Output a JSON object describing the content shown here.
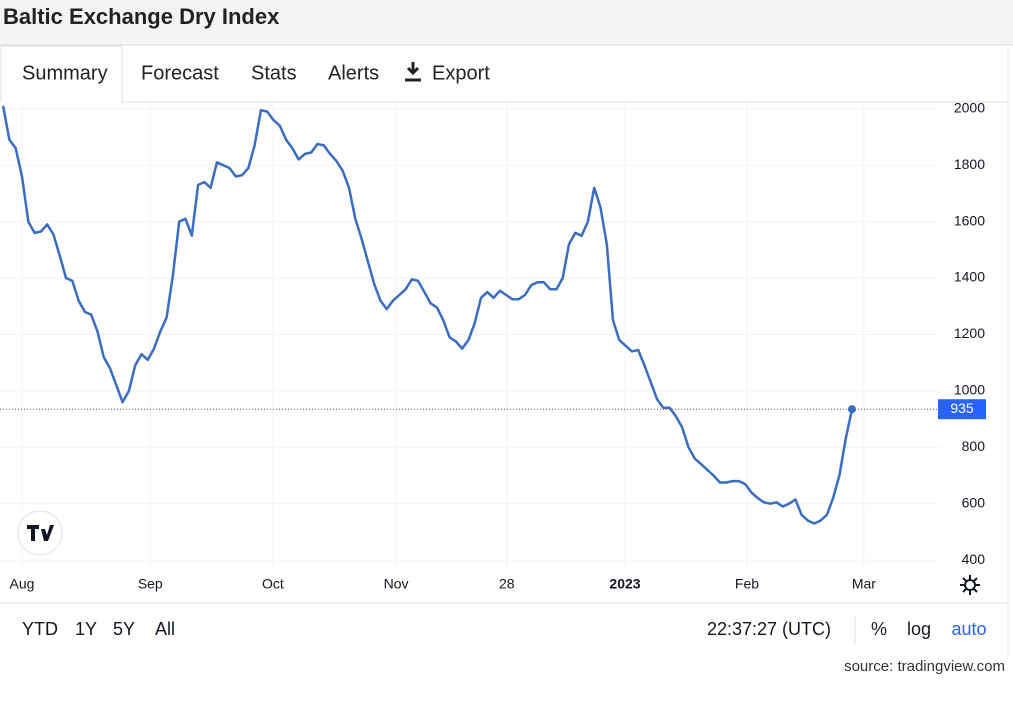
{
  "header": {
    "title": "Baltic Exchange Dry Index"
  },
  "tabs": [
    "Summary",
    "Forecast",
    "Stats",
    "Alerts",
    "Export"
  ],
  "chart_data": {
    "type": "line",
    "series": [
      {
        "color": "#3a6cc0",
        "values": [
          2010,
          1890,
          1860,
          1760,
          1600,
          1560,
          1565,
          1590,
          1555,
          1480,
          1400,
          1390,
          1320,
          1280,
          1270,
          1210,
          1120,
          1080,
          1020,
          960,
          1000,
          1090,
          1130,
          1110,
          1150,
          1210,
          1260,
          1410,
          1600,
          1610,
          1550,
          1730,
          1740,
          1720,
          1810,
          1800,
          1790,
          1760,
          1765,
          1790,
          1870,
          1995,
          1990,
          1960,
          1940,
          1890,
          1860,
          1820,
          1840,
          1845,
          1875,
          1870,
          1840,
          1815,
          1780,
          1720,
          1610,
          1540,
          1460,
          1380,
          1320,
          1290,
          1320,
          1340,
          1360,
          1395,
          1390,
          1350,
          1310,
          1295,
          1250,
          1190,
          1175,
          1150,
          1180,
          1240,
          1330,
          1350,
          1330,
          1355,
          1340,
          1325,
          1325,
          1340,
          1375,
          1385,
          1385,
          1360,
          1360,
          1400,
          1520,
          1560,
          1550,
          1600,
          1720,
          1650,
          1520,
          1250,
          1180,
          1160,
          1140,
          1145,
          1090,
          1030,
          970,
          940,
          940,
          910,
          870,
          800,
          760,
          740,
          720,
          700,
          675,
          675,
          680,
          680,
          670,
          640,
          620,
          605,
          600,
          605,
          590,
          600,
          615,
          560,
          540,
          530,
          540,
          560,
          620,
          700,
          830,
          935
        ]
      }
    ],
    "xlim": [
      -0.5,
      149.0
    ],
    "xticks": [
      {
        "value": 3.0,
        "label": "Aug"
      },
      {
        "value": 23.4,
        "label": "Sep"
      },
      {
        "value": 42.9,
        "label": "Oct"
      },
      {
        "value": 62.5,
        "label": "Nov"
      },
      {
        "value": 80.1,
        "label": "28"
      },
      {
        "value": 98.9,
        "label": "2023"
      },
      {
        "value": 118.3,
        "label": "Feb"
      },
      {
        "value": 136.9,
        "label": "Mar"
      }
    ],
    "ylim": [
      365,
      2024
    ],
    "yticks": [
      400,
      600,
      800,
      1000,
      1200,
      1400,
      1600,
      1800,
      2000
    ],
    "grid": true
  },
  "ranges": [
    "YTD",
    "1Y",
    "5Y",
    "All"
  ],
  "time": "22:37:27 (UTC)",
  "scale_options": [
    "%",
    "log",
    "auto"
  ],
  "source": "source: tradingview.com"
}
